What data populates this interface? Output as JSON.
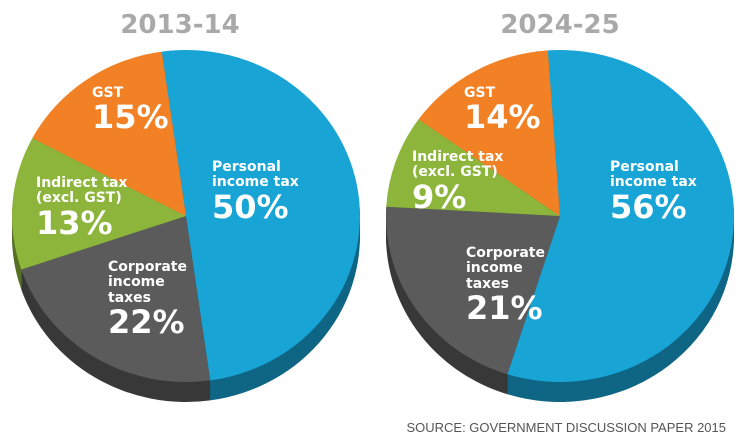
{
  "chart_data": [
    {
      "type": "pie",
      "title": "2013-14",
      "slices": [
        {
          "label": "Personal income tax",
          "value": 50,
          "pct_label": "50%",
          "color": "#19a4d6"
        },
        {
          "label": "Corporate income taxes",
          "value": 22,
          "pct_label": "22%",
          "color": "#5b5b5b"
        },
        {
          "label": "Indirect tax (excl. GST)",
          "value": 13,
          "pct_label": "13%",
          "color": "#8db53c"
        },
        {
          "label": "GST",
          "value": 15,
          "pct_label": "15%",
          "color": "#f18124"
        }
      ]
    },
    {
      "type": "pie",
      "title": "2024-25",
      "slices": [
        {
          "label": "Personal income tax",
          "value": 56,
          "pct_label": "56%",
          "color": "#19a4d6"
        },
        {
          "label": "Corporate income taxes",
          "value": 21,
          "pct_label": "21%",
          "color": "#5b5b5b"
        },
        {
          "label": "Indirect tax (excl. GST)",
          "value": 9,
          "pct_label": "9%",
          "color": "#8db53c"
        },
        {
          "label": "GST",
          "value": 14,
          "pct_label": "14%",
          "color": "#f18124"
        }
      ]
    }
  ],
  "source": "SOURCE: GOVERNMENT DISCUSSION PAPER 2015"
}
